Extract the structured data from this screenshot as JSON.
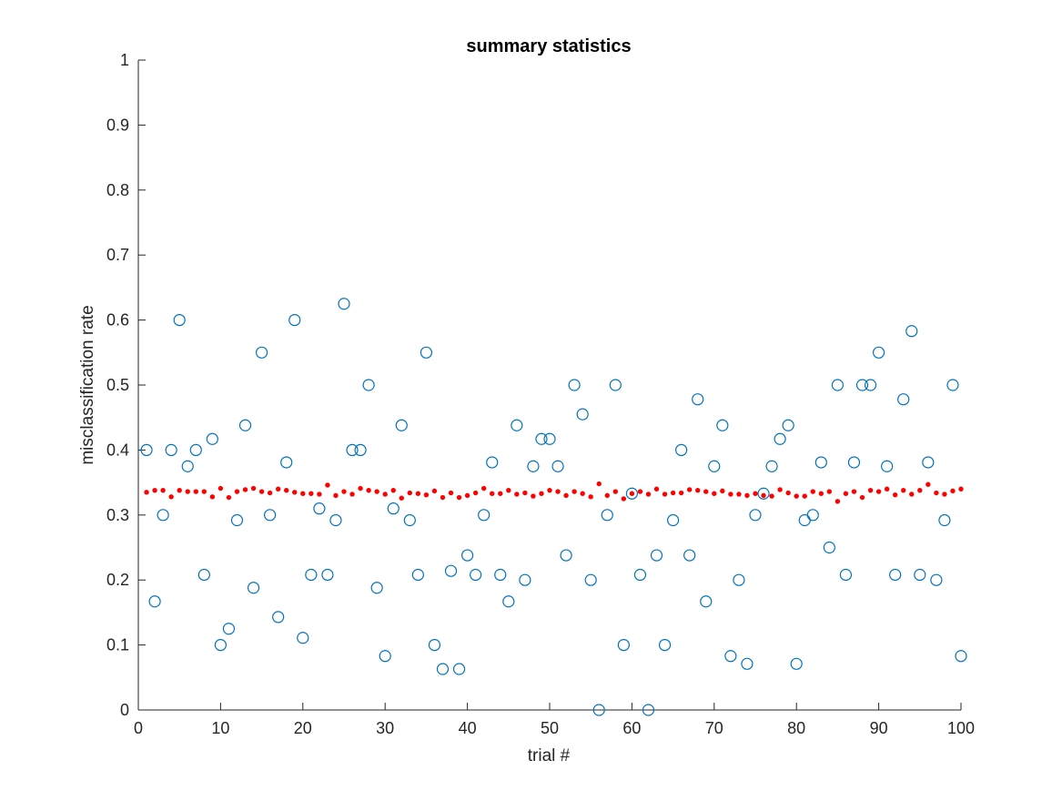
{
  "chart_data": {
    "type": "scatter",
    "title": "summary statistics",
    "xlabel": "trial #",
    "ylabel": "misclassification rate",
    "xlim": [
      0,
      100
    ],
    "ylim": [
      0,
      1
    ],
    "xticks": [
      "0",
      "10",
      "20",
      "30",
      "40",
      "50",
      "60",
      "70",
      "80",
      "90",
      "100"
    ],
    "yticks": [
      "0",
      "0.1",
      "0.2",
      "0.3",
      "0.4",
      "0.5",
      "0.6",
      "0.7",
      "0.8",
      "0.9",
      "1"
    ],
    "grid": false,
    "legend": "none",
    "x": [
      1,
      2,
      3,
      4,
      5,
      6,
      7,
      8,
      9,
      10,
      11,
      12,
      13,
      14,
      15,
      16,
      17,
      18,
      19,
      20,
      21,
      22,
      23,
      24,
      25,
      26,
      27,
      28,
      29,
      30,
      31,
      32,
      33,
      34,
      35,
      36,
      37,
      38,
      39,
      40,
      41,
      42,
      43,
      44,
      45,
      46,
      47,
      48,
      49,
      50,
      51,
      52,
      53,
      54,
      55,
      56,
      57,
      58,
      59,
      60,
      61,
      62,
      63,
      64,
      65,
      66,
      67,
      68,
      69,
      70,
      71,
      72,
      73,
      74,
      75,
      76,
      77,
      78,
      79,
      80,
      81,
      82,
      83,
      84,
      85,
      86,
      87,
      88,
      89,
      90,
      91,
      92,
      93,
      94,
      95,
      96,
      97,
      98,
      99,
      100
    ],
    "series": [
      {
        "marker": "open-circle",
        "color": "#0072BD",
        "values": [
          0.4,
          0.167,
          0.3,
          0.4,
          0.6,
          0.375,
          0.4,
          0.208,
          0.417,
          0.1,
          0.125,
          0.292,
          0.438,
          0.188,
          0.55,
          0.3,
          0.143,
          0.381,
          0.6,
          0.111,
          0.208,
          0.31,
          0.208,
          0.292,
          0.625,
          0.4,
          0.4,
          0.5,
          0.188,
          0.083,
          0.31,
          0.438,
          0.292,
          0.208,
          0.55,
          0.1,
          0.063,
          0.214,
          0.063,
          0.238,
          0.208,
          0.3,
          0.381,
          0.208,
          0.167,
          0.438,
          0.2,
          0.375,
          0.417,
          0.417,
          0.375,
          0.238,
          0.5,
          0.455,
          0.2,
          0.0,
          0.3,
          0.5,
          0.1,
          0.333,
          0.208,
          0.0,
          0.238,
          0.1,
          0.292,
          0.4,
          0.238,
          0.478,
          0.167,
          0.375,
          0.438,
          0.083,
          0.2,
          0.071,
          0.3,
          0.333,
          0.375,
          0.417,
          0.438,
          0.071,
          0.292,
          0.3,
          0.381,
          0.25,
          0.5,
          0.208,
          0.381,
          0.5,
          0.5,
          0.55,
          0.375,
          0.208,
          0.478,
          0.583,
          0.208,
          0.381,
          0.2,
          0.292,
          0.5,
          0.083
        ]
      },
      {
        "marker": "filled-dot",
        "color": "#FF0000",
        "values": [
          0.335,
          0.338,
          0.338,
          0.328,
          0.338,
          0.336,
          0.336,
          0.336,
          0.328,
          0.341,
          0.327,
          0.336,
          0.339,
          0.341,
          0.336,
          0.334,
          0.34,
          0.338,
          0.335,
          0.333,
          0.333,
          0.332,
          0.346,
          0.33,
          0.336,
          0.332,
          0.341,
          0.338,
          0.336,
          0.332,
          0.338,
          0.326,
          0.334,
          0.333,
          0.331,
          0.337,
          0.327,
          0.334,
          0.327,
          0.33,
          0.334,
          0.341,
          0.333,
          0.333,
          0.338,
          0.332,
          0.334,
          0.329,
          0.333,
          0.338,
          0.336,
          0.33,
          0.336,
          0.333,
          0.328,
          0.348,
          0.33,
          0.336,
          0.325,
          0.333,
          0.336,
          0.332,
          0.34,
          0.332,
          0.334,
          0.334,
          0.339,
          0.338,
          0.336,
          0.333,
          0.337,
          0.332,
          0.332,
          0.33,
          0.333,
          0.33,
          0.329,
          0.339,
          0.334,
          0.329,
          0.329,
          0.336,
          0.333,
          0.336,
          0.321,
          0.333,
          0.336,
          0.327,
          0.338,
          0.336,
          0.34,
          0.331,
          0.338,
          0.332,
          0.338,
          0.347,
          0.334,
          0.332,
          0.337,
          0.34
        ]
      }
    ]
  }
}
